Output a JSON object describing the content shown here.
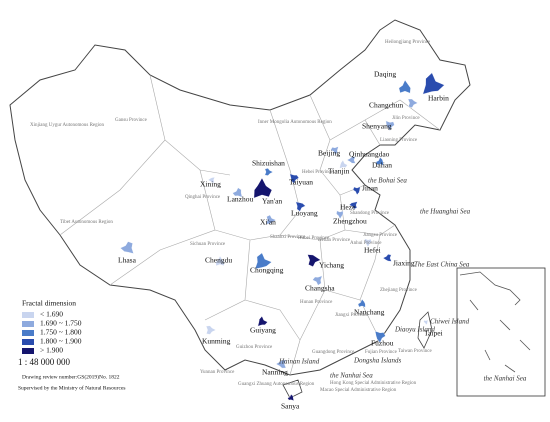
{
  "legend": {
    "title": "Fractal dimension",
    "items": [
      {
        "label": "< 1.690",
        "color": "#c9d5ef"
      },
      {
        "label": "1.690 ~ 1.750",
        "color": "#8eaade"
      },
      {
        "label": "1.750 ~ 1.800",
        "color": "#4a7cc9"
      },
      {
        "label": "1.800 ~ 1.900",
        "color": "#2a4cae"
      },
      {
        "label": "> 1.900",
        "color": "#15156e"
      }
    ]
  },
  "scale": "1 : 48 000 000",
  "notes": [
    "Drawing review number:GS(2019)No. 1822",
    "Supervised by the Ministry of Natural Resources"
  ],
  "cities": [
    {
      "label": "Daqing",
      "color": "#4a7cc9"
    },
    {
      "label": "Harbin",
      "color": "#2a4cae"
    },
    {
      "label": "Changchun",
      "color": "#8eaade"
    },
    {
      "label": "Shenyang",
      "color": "#8eaade"
    },
    {
      "label": "Beijing",
      "color": "#8eaade"
    },
    {
      "label": "Qinhuangdao",
      "color": "#8eaade"
    },
    {
      "label": "Dalian",
      "color": "#4a7cc9"
    },
    {
      "label": "Tianjin",
      "color": "#c9d5ef"
    },
    {
      "label": "Shizuishan",
      "color": "#4a7cc9"
    },
    {
      "label": "Taiyuan",
      "color": "#2a4cae"
    },
    {
      "label": "Jinan",
      "color": "#2a4cae"
    },
    {
      "label": "Xining",
      "color": "#c9d5ef"
    },
    {
      "label": "Lanzhou",
      "color": "#8eaade"
    },
    {
      "label": "Yan'an",
      "color": "#15156e"
    },
    {
      "label": "Xi'an",
      "color": "#8eaade"
    },
    {
      "label": "Luoyang",
      "color": "#2a4cae"
    },
    {
      "label": "Zhengzhou",
      "color": "#8eaade"
    },
    {
      "label": "Heze",
      "color": "#2a4cae"
    },
    {
      "label": "Lhasa",
      "color": "#8eaade"
    },
    {
      "label": "Chengdu",
      "color": "#c9d5ef"
    },
    {
      "label": "Chongqing",
      "color": "#4a7cc9"
    },
    {
      "label": "Yichang",
      "color": "#15156e"
    },
    {
      "label": "Hefei",
      "color": "#c9d5ef"
    },
    {
      "label": "Changsha",
      "color": "#8eaade"
    },
    {
      "label": "Jiaxing",
      "color": "#2a4cae"
    },
    {
      "label": "Nanchang",
      "color": "#4a7cc9"
    },
    {
      "label": "Guiyang",
      "color": "#15156e"
    },
    {
      "label": "Kunming",
      "color": "#c9d5ef"
    },
    {
      "label": "Fuzhou",
      "color": "#4a7cc9"
    },
    {
      "label": "Taipei",
      "color": "#c9d5ef"
    },
    {
      "label": "Nanning",
      "color": "#8eaade"
    },
    {
      "label": "Sanya",
      "color": "#15156e"
    }
  ],
  "provinces": [
    "Heilongjiang Province",
    "Jilin Province",
    "Liaoning Province",
    "Inner Mongolia Autonomous Region",
    "Xinjiang Uygur Autonomous Region",
    "Gansu Province",
    "Qinghai Province",
    "Tibet Autonomous Region",
    "Sichuan Province",
    "Yunnan Province",
    "Guizhou Province",
    "Guangxi Zhuang Autonomous Region",
    "Guangdong Province",
    "Hong Kong Special Administrative Region",
    "Macao Special Administrative Region",
    "Fujian Province",
    "Jiangxi Province",
    "Hunan Province",
    "Hubei Province",
    "Shaanxi Province",
    "Henan Province",
    "Shandong Province",
    "Hebei Province",
    "Anhui Province",
    "Jiangsu Province",
    "Zhejiang Province",
    "Taiwan Province"
  ],
  "water_labels": [
    "the Bohai Sea",
    "the Huanghai Sea",
    "The East China Sea",
    "Chiwei Island",
    "Diaoyu Island",
    "Dongsha Islands",
    "the Nanhai Sea",
    "Hainan Island"
  ],
  "inset": {
    "label": "the Nanhai Sea"
  }
}
